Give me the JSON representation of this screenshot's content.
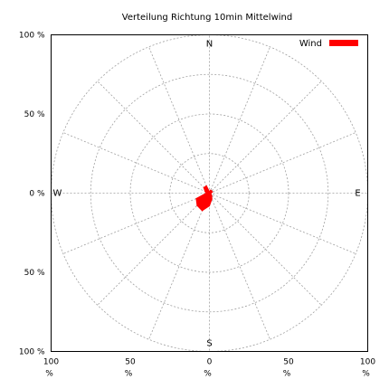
{
  "chart_data": {
    "type": "polar-area",
    "title": "Verteilung Richtung  10min Mittelwind",
    "radial_range_percent": [
      0,
      100
    ],
    "rings_percent": [
      25,
      50,
      75,
      100
    ],
    "spoke_step_deg": 22.5,
    "grid": true,
    "legend_position": "top-right",
    "y_ticks": [
      "100 %",
      "50 %",
      "0 %",
      "50 %",
      "100 %"
    ],
    "x_ticks": [
      {
        "value": "100",
        "unit": "%"
      },
      {
        "value": "50",
        "unit": "%"
      },
      {
        "value": "0",
        "unit": "%"
      },
      {
        "value": "50",
        "unit": "%"
      },
      {
        "value": "100",
        "unit": "%"
      }
    ],
    "directions": {
      "north": "N",
      "east": "E",
      "south": "S",
      "west": "W"
    },
    "series": [
      {
        "name": "Wind",
        "color": "#ff0000",
        "points": [
          {
            "direction_deg": 0,
            "percent": 1
          },
          {
            "direction_deg": 22.5,
            "percent": 2
          },
          {
            "direction_deg": 45,
            "percent": 2
          },
          {
            "direction_deg": 67.5,
            "percent": 2
          },
          {
            "direction_deg": 90,
            "percent": 1
          },
          {
            "direction_deg": 112.5,
            "percent": 1
          },
          {
            "direction_deg": 135,
            "percent": 2
          },
          {
            "direction_deg": 157.5,
            "percent": 4
          },
          {
            "direction_deg": 180,
            "percent": 8
          },
          {
            "direction_deg": 202.5,
            "percent": 12
          },
          {
            "direction_deg": 225,
            "percent": 11
          },
          {
            "direction_deg": 247.5,
            "percent": 9
          },
          {
            "direction_deg": 270,
            "percent": 2
          },
          {
            "direction_deg": 292.5,
            "percent": 3
          },
          {
            "direction_deg": 315,
            "percent": 5
          },
          {
            "direction_deg": 337.5,
            "percent": 5
          }
        ]
      }
    ]
  }
}
